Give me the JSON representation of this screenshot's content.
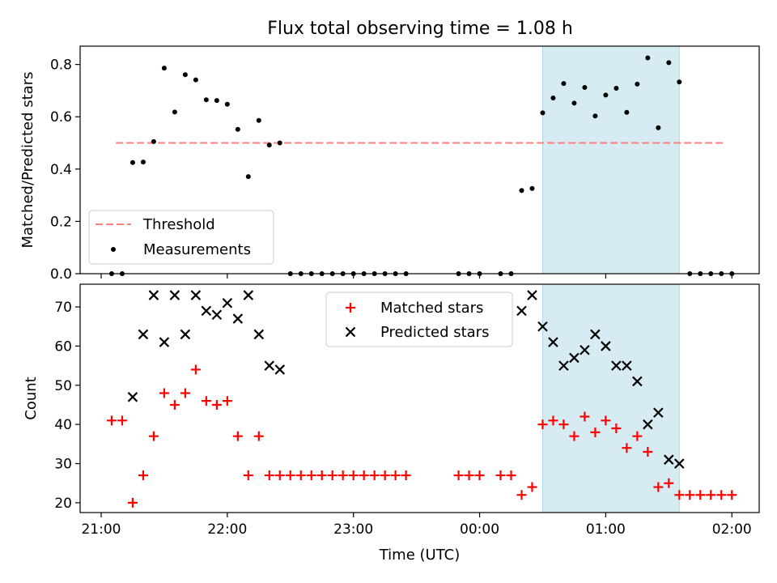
{
  "figure_title": "Flux total observing time = 1.08 h",
  "chart_data": [
    {
      "type": "scatter",
      "ylabel": "Matched/Predicted stars",
      "xlabel": "",
      "x_ticks": [
        "21:00",
        "22:00",
        "23:00",
        "00:00",
        "01:00",
        "02:00"
      ],
      "y_ticks": [
        "0.0",
        "0.2",
        "0.4",
        "0.6",
        "0.8"
      ],
      "ylim": [
        0,
        0.87
      ],
      "xlim_minutes_from_2100": [
        -10,
        313
      ],
      "threshold": 0.5,
      "highlight_span_minutes_from_2100": [
        210,
        275
      ],
      "legend": {
        "position": "lower-left",
        "entries": [
          "Threshold",
          "Measurements"
        ]
      },
      "series": [
        {
          "name": "Threshold",
          "style": "dashed-line",
          "color": "#ff7f7f"
        },
        {
          "name": "Measurements",
          "style": "dot",
          "color": "#000000",
          "points": [
            [
              5,
              0
            ],
            [
              10,
              0
            ],
            [
              15,
              0.425
            ],
            [
              20,
              0.427
            ],
            [
              25,
              0.505
            ],
            [
              30,
              0.786
            ],
            [
              35,
              0.618
            ],
            [
              40,
              0.761
            ],
            [
              45,
              0.741
            ],
            [
              50,
              0.665
            ],
            [
              55,
              0.662
            ],
            [
              60,
              0.648
            ],
            [
              65,
              0.552
            ],
            [
              70,
              0.371
            ],
            [
              75,
              0.586
            ],
            [
              80,
              0.492
            ],
            [
              85,
              0.5
            ],
            [
              90,
              0
            ],
            [
              95,
              0
            ],
            [
              100,
              0
            ],
            [
              105,
              0
            ],
            [
              110,
              0
            ],
            [
              115,
              0
            ],
            [
              120,
              0
            ],
            [
              125,
              0
            ],
            [
              130,
              0
            ],
            [
              135,
              0
            ],
            [
              140,
              0
            ],
            [
              145,
              0
            ],
            [
              170,
              0
            ],
            [
              175,
              0
            ],
            [
              180,
              0
            ],
            [
              190,
              0
            ],
            [
              195,
              0
            ],
            [
              200,
              0.318
            ],
            [
              205,
              0.326
            ],
            [
              210,
              0.615
            ],
            [
              215,
              0.672
            ],
            [
              220,
              0.727
            ],
            [
              225,
              0.652
            ],
            [
              230,
              0.712
            ],
            [
              235,
              0.603
            ],
            [
              240,
              0.683
            ],
            [
              245,
              0.709
            ],
            [
              250,
              0.617
            ],
            [
              255,
              0.725
            ],
            [
              260,
              0.825
            ],
            [
              265,
              0.558
            ],
            [
              270,
              0.807
            ],
            [
              275,
              0.733
            ],
            [
              280,
              0
            ],
            [
              285,
              0
            ],
            [
              290,
              0
            ],
            [
              295,
              0
            ],
            [
              300,
              0
            ]
          ]
        }
      ]
    },
    {
      "type": "scatter",
      "xlabel": "Time (UTC)",
      "ylabel": "Count",
      "x_ticks": [
        "21:00",
        "22:00",
        "23:00",
        "00:00",
        "01:00",
        "02:00"
      ],
      "y_ticks": [
        "20",
        "30",
        "40",
        "50",
        "60",
        "70"
      ],
      "ylim": [
        17.5,
        75.8
      ],
      "xlim_minutes_from_2100": [
        -10,
        313
      ],
      "highlight_span_minutes_from_2100": [
        210,
        275
      ],
      "legend": {
        "position": "upper-center",
        "entries": [
          "Matched stars",
          "Predicted stars"
        ]
      },
      "series": [
        {
          "name": "Matched stars",
          "marker": "+",
          "color": "#ff0000",
          "points": [
            [
              5,
              41
            ],
            [
              10,
              41
            ],
            [
              15,
              20
            ],
            [
              20,
              27
            ],
            [
              25,
              37
            ],
            [
              30,
              48
            ],
            [
              35,
              45
            ],
            [
              40,
              48
            ],
            [
              45,
              54
            ],
            [
              50,
              46
            ],
            [
              55,
              45
            ],
            [
              60,
              46
            ],
            [
              65,
              37
            ],
            [
              70,
              27
            ],
            [
              75,
              37
            ],
            [
              80,
              27
            ],
            [
              85,
              27
            ],
            [
              90,
              27
            ],
            [
              95,
              27
            ],
            [
              100,
              27
            ],
            [
              105,
              27
            ],
            [
              110,
              27
            ],
            [
              115,
              27
            ],
            [
              120,
              27
            ],
            [
              125,
              27
            ],
            [
              130,
              27
            ],
            [
              135,
              27
            ],
            [
              140,
              27
            ],
            [
              145,
              27
            ],
            [
              170,
              27
            ],
            [
              175,
              27
            ],
            [
              180,
              27
            ],
            [
              190,
              27
            ],
            [
              195,
              27
            ],
            [
              200,
              22
            ],
            [
              205,
              24
            ],
            [
              210,
              40
            ],
            [
              215,
              41
            ],
            [
              220,
              40
            ],
            [
              225,
              37
            ],
            [
              230,
              42
            ],
            [
              235,
              38
            ],
            [
              240,
              41
            ],
            [
              245,
              39
            ],
            [
              250,
              34
            ],
            [
              255,
              37
            ],
            [
              260,
              33
            ],
            [
              265,
              24
            ],
            [
              270,
              25
            ],
            [
              275,
              22
            ],
            [
              280,
              22
            ],
            [
              285,
              22
            ],
            [
              290,
              22
            ],
            [
              295,
              22
            ],
            [
              300,
              22
            ]
          ]
        },
        {
          "name": "Predicted stars",
          "marker": "x",
          "color": "#000000",
          "points": [
            [
              15,
              47
            ],
            [
              20,
              63
            ],
            [
              25,
              73
            ],
            [
              30,
              61
            ],
            [
              35,
              73
            ],
            [
              40,
              63
            ],
            [
              45,
              73
            ],
            [
              50,
              69
            ],
            [
              55,
              68
            ],
            [
              60,
              71
            ],
            [
              65,
              67
            ],
            [
              70,
              73
            ],
            [
              75,
              63
            ],
            [
              80,
              55
            ],
            [
              85,
              54
            ],
            [
              200,
              69
            ],
            [
              205,
              73
            ],
            [
              210,
              65
            ],
            [
              215,
              61
            ],
            [
              220,
              55
            ],
            [
              225,
              57
            ],
            [
              230,
              59
            ],
            [
              235,
              63
            ],
            [
              240,
              60
            ],
            [
              245,
              55
            ],
            [
              250,
              55
            ],
            [
              255,
              51
            ],
            [
              260,
              40
            ],
            [
              265,
              43
            ],
            [
              270,
              31
            ],
            [
              275,
              30
            ]
          ]
        }
      ]
    }
  ]
}
